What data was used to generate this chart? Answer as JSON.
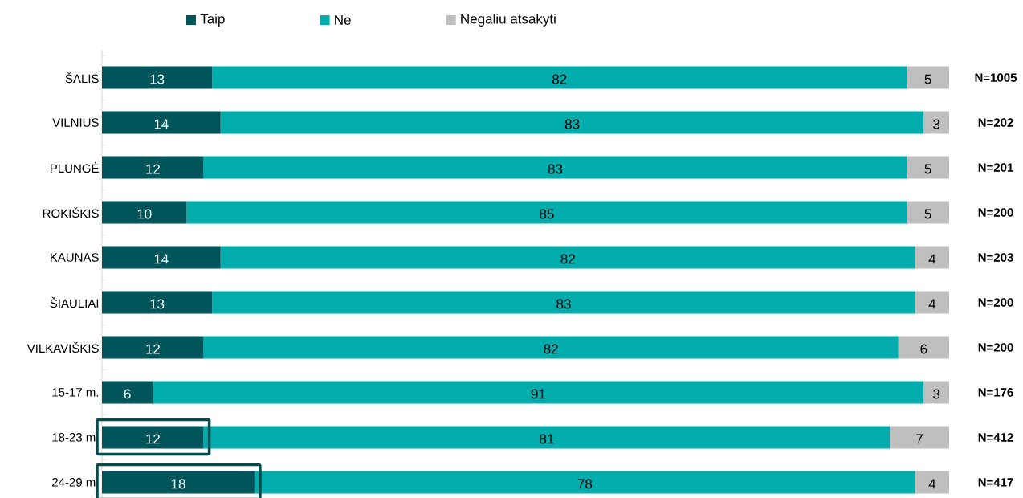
{
  "chart_data": {
    "type": "bar",
    "orientation": "horizontal",
    "stacked": true,
    "data_labels": true,
    "legend": "top",
    "categories": [
      "ŠALIS",
      "VILNIUS",
      "PLUNGĖ",
      "ROKIŠKIS",
      "KAUNAS",
      "ŠIAULIAI",
      "VILKAVIŠKIS",
      "15-17 m.",
      "18-23 m.",
      "24-29 m."
    ],
    "tick_labels": "y",
    "series": [
      {
        "name": "Taip",
        "color": "#00555a",
        "values": [
          13,
          14,
          12,
          10,
          14,
          13,
          12,
          6,
          12,
          18
        ]
      },
      {
        "name": "Ne",
        "color": "#00acac",
        "values": [
          82,
          83,
          83,
          85,
          82,
          83,
          82,
          91,
          81,
          78
        ]
      },
      {
        "name": "Negaliu atsakyti",
        "color": "#bfbfbf",
        "values": [
          5,
          3,
          5,
          5,
          4,
          4,
          6,
          3,
          7,
          4
        ]
      }
    ],
    "annotations": [
      "N=1005",
      "N=202",
      "N=201",
      "N=200",
      "N=203",
      "N=200",
      "N=200",
      "N=176",
      "N=412",
      "N=417"
    ]
  }
}
